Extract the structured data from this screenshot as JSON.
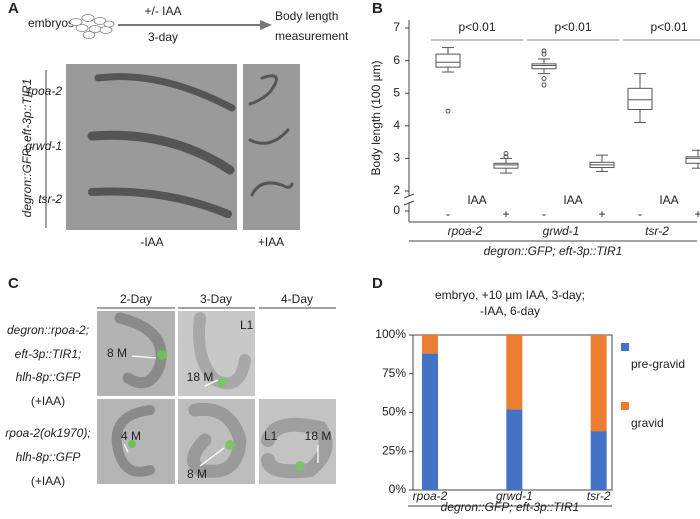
{
  "panel_a": {
    "label": "A",
    "embryos": "embryos",
    "treatment": "+/- IAA",
    "duration": "3-day",
    "outcome_lines": [
      "Body length",
      "measurement"
    ],
    "genotype": "degron::GFP; eft-3p::TIR1",
    "rows": [
      "rpoa-2",
      "grwd-1",
      "tsr-2"
    ],
    "columns": [
      "-IAA",
      "+IAA"
    ]
  },
  "panel_b": {
    "label": "B"
  },
  "panel_c": {
    "label": "C",
    "columns": [
      "2-Day",
      "3-Day",
      "4-Day"
    ],
    "rows": [
      {
        "lines": [
          "degron::rpoa-2;",
          "eft-3p::TIR1;",
          "hlh-8p::GFP",
          "(+IAA)"
        ]
      },
      {
        "lines": [
          "rpoa-2(ok1970);",
          "hlh-8p::GFP",
          "(+IAA)"
        ]
      }
    ],
    "annotations": [
      "8 M",
      "L1",
      "18 M",
      "4 M",
      "8 M",
      "L1",
      "18 M"
    ]
  },
  "panel_d": {
    "label": "D"
  },
  "chart_data": [
    {
      "type": "box",
      "y_label": "Body length (100 µm)",
      "x_caption": "degron::GFP; eft-3p::TIR1",
      "categories": [
        "rpoa-2",
        "grwd-1",
        "tsr-2"
      ],
      "group_label": "IAA",
      "significance": [
        "p<0.01",
        "p<0.01",
        "p<0.01"
      ],
      "ylim": [
        0,
        7
      ],
      "axis_break": [
        0,
        2
      ],
      "yticks": [
        0,
        2,
        3,
        4,
        5,
        6,
        7
      ],
      "series": [
        {
          "name": "-",
          "color": "#ffffff",
          "boxes": [
            {
              "min": 5.65,
              "q1": 5.8,
              "median": 5.95,
              "q3": 6.2,
              "max": 6.4,
              "outliers": [
                4.45
              ]
            },
            {
              "min": 5.6,
              "q1": 5.75,
              "median": 5.85,
              "q3": 5.9,
              "max": 6.05,
              "outliers": [
                6.3,
                6.2,
                5.45,
                5.25
              ]
            },
            {
              "min": 4.1,
              "q1": 4.5,
              "median": 4.8,
              "q3": 5.15,
              "max": 5.6,
              "outliers": []
            }
          ]
        },
        {
          "name": "+",
          "color": "#ffffff",
          "boxes": [
            {
              "min": 2.55,
              "q1": 2.7,
              "median": 2.8,
              "q3": 2.85,
              "max": 3.0,
              "outliers": [
                3.15,
                3.05
              ]
            },
            {
              "min": 2.6,
              "q1": 2.72,
              "median": 2.8,
              "q3": 2.88,
              "max": 3.1,
              "outliers": []
            },
            {
              "min": 2.7,
              "q1": 2.85,
              "median": 3.0,
              "q3": 3.05,
              "max": 3.25,
              "outliers": []
            }
          ]
        }
      ]
    },
    {
      "type": "stacked-bar",
      "title_lines": [
        "embryo, +10 µm IAA, 3-day;",
        "-IAA, 6-day"
      ],
      "x_caption": "degron::GFP; eft-3p::TIR1",
      "categories": [
        "rpoa-2",
        "grwd-1",
        "tsr-2"
      ],
      "ylim": [
        0,
        100
      ],
      "yticks": [
        {
          "value": 0,
          "label": "0%"
        },
        {
          "value": 25,
          "label": "25%"
        },
        {
          "value": 50,
          "label": "50%"
        },
        {
          "value": 75,
          "label": "75%"
        },
        {
          "value": 100,
          "label": "100%"
        }
      ],
      "legend": "right",
      "series": [
        {
          "name": "pre-gravid",
          "color": "#4472c4",
          "values": [
            88,
            52,
            38
          ]
        },
        {
          "name": "gravid",
          "color": "#ed7d31",
          "values": [
            12,
            48,
            62
          ]
        }
      ]
    }
  ]
}
